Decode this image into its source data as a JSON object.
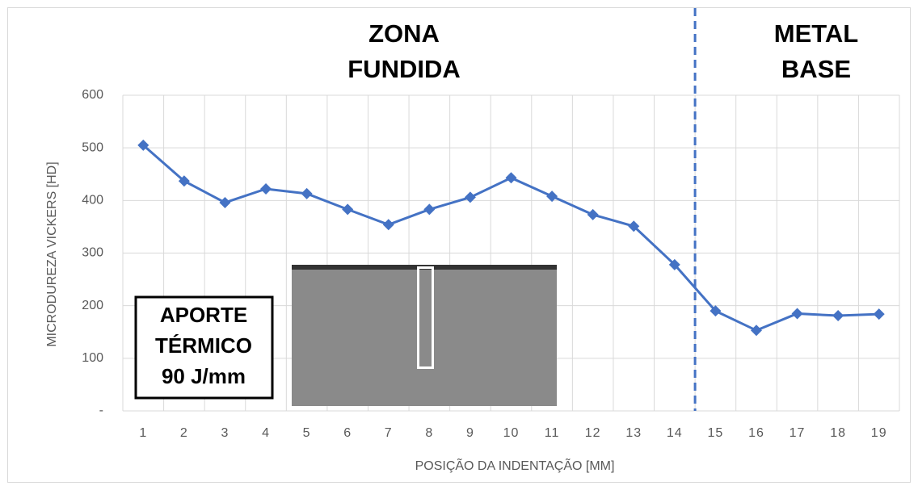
{
  "chart_data": {
    "type": "line",
    "x_label": "POSIÇÃO DA INDENTAÇÃO [MM]",
    "y_label": "MICRODUREZA VICKERS [HD]",
    "categories": [
      "1",
      "2",
      "3",
      "4",
      "5",
      "6",
      "7",
      "8",
      "9",
      "10",
      "11",
      "12",
      "13",
      "14",
      "15",
      "16",
      "17",
      "18",
      "19"
    ],
    "series": [
      {
        "name": "Microdureza",
        "color": "#4472c4",
        "values": [
          505,
          437,
          396,
          422,
          413,
          383,
          354,
          383,
          406,
          443,
          408,
          373,
          351,
          278,
          190,
          153,
          185,
          181,
          184
        ]
      }
    ],
    "ylim": [
      0,
      600
    ],
    "yticks": [
      {
        "value": 0,
        "label": "-"
      },
      100,
      200,
      300,
      400,
      500,
      600
    ],
    "grid": true,
    "zones": [
      [
        "ZONA",
        "FUNDIDA"
      ],
      [
        "METAL",
        "BASE"
      ]
    ],
    "box_text": [
      "APORTE",
      "TÉRMICO",
      "90 J/mm"
    ]
  }
}
